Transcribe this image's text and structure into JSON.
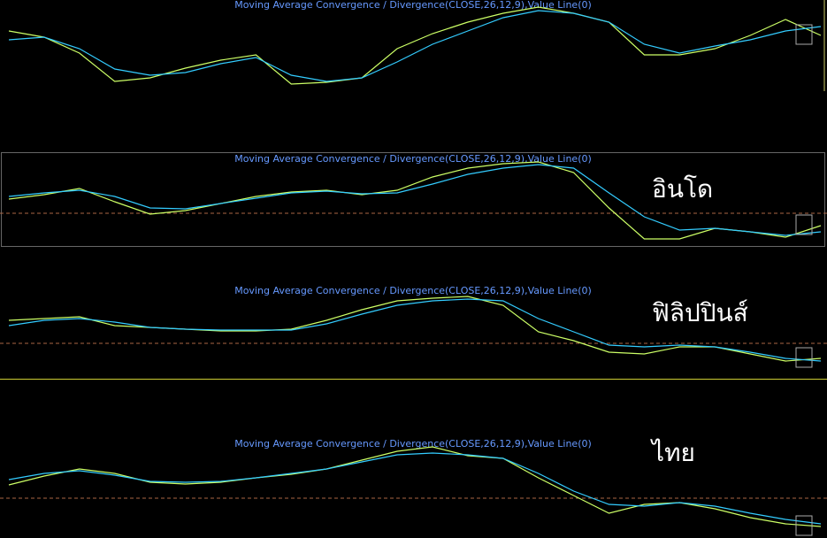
{
  "chart_data": [
    {
      "type": "line",
      "title": "Moving Average Convergence / Divergence(CLOSE,26,12,9),Value Line(0)",
      "categories": [
        null,
        null,
        null,
        null,
        null,
        null,
        null,
        null,
        null,
        null,
        null,
        null,
        null,
        null,
        null,
        null,
        null,
        null,
        null,
        null,
        null,
        null,
        null,
        null
      ],
      "ylim": [
        -51,
        52
      ],
      "series": [
        {
          "color": "#ccff66",
          "values": [
            17,
            10,
            -8,
            -40,
            -36,
            -25,
            -16,
            -10,
            -43,
            -41,
            -36,
            -3,
            14,
            27,
            37,
            44,
            37,
            27,
            -10,
            -10,
            -3,
            12,
            30,
            12
          ]
        },
        {
          "color": "#33ccff",
          "values": [
            7,
            10,
            -3,
            -26,
            -33,
            -30,
            -20,
            -13,
            -33,
            -40,
            -36,
            -18,
            2,
            17,
            32,
            40,
            37,
            27,
            2,
            -8,
            0,
            7,
            17,
            22
          ]
        }
      ]
    },
    {
      "type": "line",
      "title": "Moving Average Convergence / Divergence(CLOSE,26,12,9),Value Line(0)",
      "annotation": "อินโด",
      "categories": [
        null,
        null,
        null,
        null,
        null,
        null,
        null,
        null,
        null,
        null,
        null,
        null,
        null,
        null,
        null,
        null,
        null,
        null,
        null,
        null,
        null,
        null,
        null,
        null
      ],
      "ylim": [
        -37,
        69
      ],
      "hline": 0,
      "series": [
        {
          "color": "#ccff66",
          "values": [
            16,
            21,
            28,
            13,
            -1,
            3,
            11,
            19,
            24,
            26,
            21,
            26,
            41,
            51,
            56,
            58,
            46,
            6,
            -29,
            -29,
            -17,
            -21,
            -27,
            -14
          ]
        },
        {
          "color": "#33ccff",
          "values": [
            19,
            23,
            26,
            19,
            6,
            5,
            11,
            17,
            23,
            25,
            22,
            23,
            33,
            44,
            51,
            55,
            51,
            23,
            -4,
            -19,
            -17,
            -21,
            -25,
            -21
          ]
        }
      ]
    },
    {
      "type": "line",
      "title": "Moving Average Convergence / Divergence(CLOSE,26,12,9),Value Line(0)",
      "annotation": "ฟิลิปปินส์",
      "categories": [
        null,
        null,
        null,
        null,
        null,
        null,
        null,
        null,
        null,
        null,
        null,
        null,
        null,
        null,
        null,
        null,
        null,
        null,
        null,
        null,
        null,
        null,
        null,
        null
      ],
      "ylim": [
        -40,
        68
      ],
      "hline": 0,
      "series": [
        {
          "color": "#ccff66",
          "values": [
            26,
            28,
            30,
            20,
            18,
            16,
            14,
            14,
            16,
            26,
            38,
            48,
            51,
            53,
            43,
            13,
            3,
            -10,
            -12,
            -4,
            -4,
            -12,
            -20,
            -17
          ]
        },
        {
          "color": "#33ccff",
          "values": [
            20,
            26,
            28,
            24,
            18,
            16,
            15,
            15,
            15,
            22,
            33,
            43,
            48,
            50,
            48,
            28,
            13,
            -2,
            -4,
            -2,
            -4,
            -10,
            -17,
            -20
          ]
        }
      ]
    },
    {
      "type": "line",
      "title": "Moving Average Convergence / Divergence(CLOSE,26,12,9),Value Line(0)",
      "annotation": "ไทย",
      "categories": [
        null,
        null,
        null,
        null,
        null,
        null,
        null,
        null,
        null,
        null,
        null,
        null,
        null,
        null,
        null,
        null,
        null,
        null,
        null,
        null,
        null,
        null,
        null,
        null
      ],
      "ylim": [
        -45,
        68
      ],
      "hline": 0,
      "series": [
        {
          "color": "#ccff66",
          "values": [
            15,
            25,
            33,
            28,
            18,
            16,
            18,
            23,
            27,
            33,
            43,
            53,
            58,
            48,
            45,
            23,
            3,
            -17,
            -7,
            -5,
            -12,
            -22,
            -29,
            -32
          ]
        },
        {
          "color": "#33ccff",
          "values": [
            21,
            28,
            31,
            26,
            19,
            18,
            19,
            23,
            28,
            33,
            41,
            49,
            51,
            49,
            45,
            28,
            8,
            -7,
            -9,
            -5,
            -9,
            -17,
            -24,
            -29
          ]
        }
      ]
    }
  ]
}
